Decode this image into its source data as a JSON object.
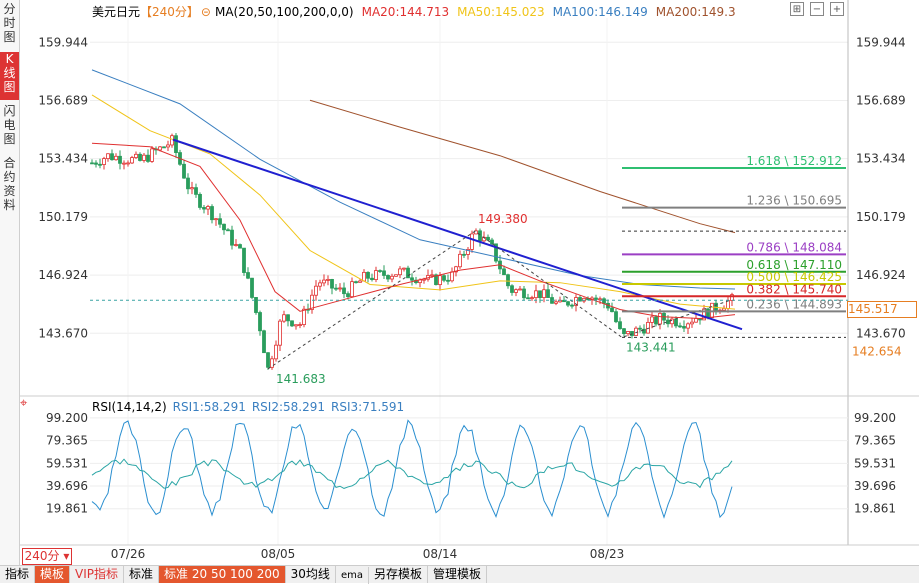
{
  "sidebar": {
    "tabs": [
      "分时图",
      "K线图",
      "闪电图",
      "合约资料"
    ],
    "active": 1
  },
  "legend": {
    "title": "美元日元",
    "period": "【240分】",
    "ma_label": "MA(20,50,100,200,0,0)",
    "ma20": "MA20:144.713",
    "ma50": "MA50:145.023",
    "ma100": "MA100:146.149",
    "ma200": "MA200:149.3"
  },
  "rsi_legend": {
    "label": "RSI(14,14,2)",
    "rsi1": "RSI1:58.291",
    "rsi2": "RSI2:58.291",
    "rsi3": "RSI3:71.591"
  },
  "colors": {
    "ma20": "#e03030",
    "ma50": "#f0c419",
    "ma100": "#3a7fc0",
    "ma200": "#a0522d",
    "up": "#e03030",
    "down": "#2a9d5c",
    "trend": "#2020d0"
  },
  "price_axis": {
    "labels": [
      "159.944",
      "156.689",
      "153.434",
      "150.179",
      "146.924",
      "143.670"
    ],
    "min": 140.5,
    "max": 161.3,
    "current": "145.517",
    "ref": "142.654"
  },
  "rsi_axis": {
    "labels": [
      "99.200",
      "79.365",
      "59.531",
      "39.696",
      "19.861"
    ]
  },
  "x_axis": {
    "labels": [
      "07/26",
      "08/05",
      "08/14",
      "08/23"
    ]
  },
  "annotations": {
    "high": "149.380",
    "low1": "141.683",
    "low2": "143.441"
  },
  "fib_levels": [
    {
      "label": "1.618 \\ 152.912",
      "value": 152.912,
      "color": "#2fbf71"
    },
    {
      "label": "1.236 \\ 150.695",
      "value": 150.695,
      "color": "#7f7f7f"
    },
    {
      "label": "",
      "value": 149.38,
      "color": "#333333",
      "dashed": true
    },
    {
      "label": "0.786 \\ 148.084",
      "value": 148.084,
      "color": "#9b3fc4"
    },
    {
      "label": "0.618 \\ 147.110",
      "value": 147.11,
      "color": "#2ca02c"
    },
    {
      "label": "0.500 \\ 146.425",
      "value": 146.425,
      "color": "#c8c800"
    },
    {
      "label": "0.382 \\ 145.740",
      "value": 145.74,
      "color": "#d62728"
    },
    {
      "label": "0.236 \\ 144.893",
      "value": 144.893,
      "color": "#7f7f7f"
    },
    {
      "label": "",
      "value": 143.441,
      "color": "#333333",
      "dashed": true
    }
  ],
  "bottom_tabs": [
    "指标",
    "模板",
    "VIP指标",
    "标准",
    "标准 20 50 100 200",
    "30均线",
    "ema",
    "另存模板",
    "管理模板"
  ],
  "period_button": "240分 ▾",
  "chart_data": {
    "type": "candlestick",
    "title": "美元日元 240分",
    "x": [
      "07/26",
      "08/05",
      "08/14",
      "08/23"
    ],
    "ylim": [
      140.5,
      161.3
    ],
    "key_prices": {
      "high": 149.38,
      "low1": 141.683,
      "low2": 143.441,
      "current": 145.517
    },
    "moving_averages": {
      "MA20": 144.713,
      "MA50": 145.023,
      "MA100": 146.149,
      "MA200": 149.3
    },
    "rsi": {
      "RSI1": 58.291,
      "RSI2": 58.291,
      "RSI3": 71.591,
      "ylim": [
        10,
        100
      ]
    }
  }
}
